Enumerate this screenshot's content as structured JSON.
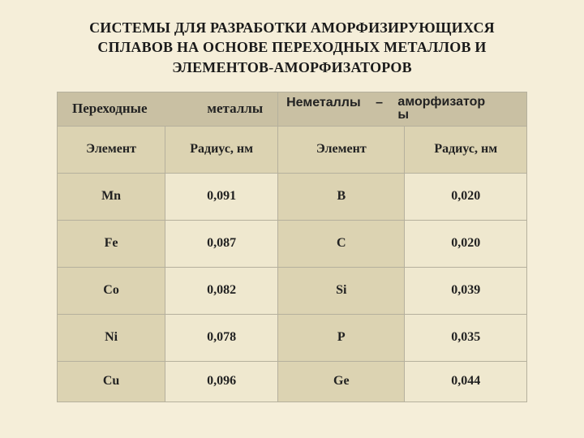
{
  "title": "СИСТЕМЫ ДЛЯ РАЗРАБОТКИ АМОРФИЗИРУЮЩИХСЯ СПЛАВОВ НА ОСНОВЕ ПЕРЕХОДНЫХ МЕТАЛЛОВ И ЭЛЕМЕНТОВ-АМОРФИЗАТОРОВ",
  "background_color": "#f5eed9",
  "colors": {
    "header_dark": "#c9c0a3",
    "cell_tan": "#dcd3b2",
    "cell_light": "#efe8cf",
    "border": "#b5b09d"
  },
  "table": {
    "group_left_w1": "Переходные",
    "group_left_w2": "металлы",
    "group_right_w1": "Неметаллы",
    "group_right_dash": "–",
    "group_right_w2a": "аморфизатор",
    "group_right_w2b": "ы",
    "sub_el": "Элемент",
    "sub_r": "Радиус, нм",
    "rows": [
      {
        "el1": "Mn",
        "r1": "0,091",
        "el2": "B",
        "r2": "0,020"
      },
      {
        "el1": "Fe",
        "r1": "0,087",
        "el2": "C",
        "r2": "0,020"
      },
      {
        "el1": "Co",
        "r1": "0,082",
        "el2": "Si",
        "r2": "0,039"
      },
      {
        "el1": "Ni",
        "r1": "0,078",
        "el2": "P",
        "r2": "0,035"
      },
      {
        "el1": "Cu",
        "r1": "0,096",
        "el2": "Ge",
        "r2": "0,044"
      }
    ]
  }
}
